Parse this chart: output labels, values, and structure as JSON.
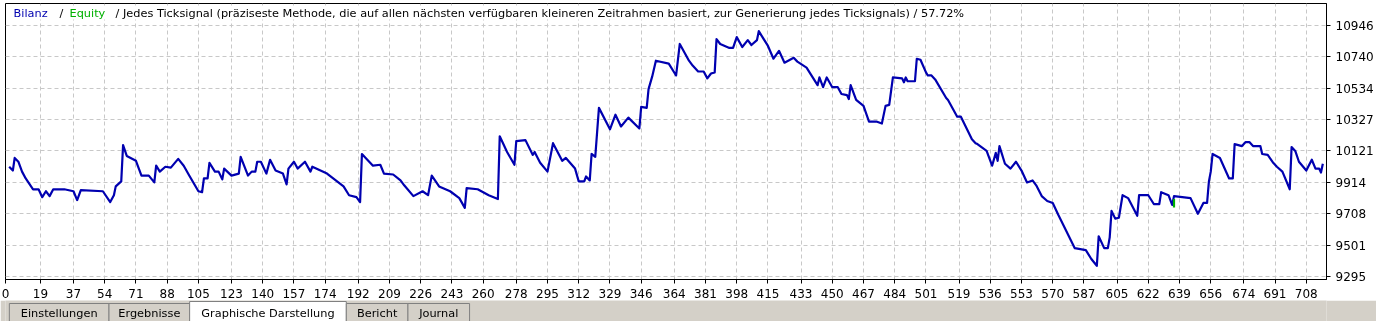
{
  "chart_data": {
    "type": "line",
    "title": "/ Jedes  Ticksignal (präziseste Methode, die auf allen nächsten verfügbaren kleineren Zeitrahmen basiert, zur Generierung jedes Ticksignals) / 57.72%",
    "xlim": [
      0,
      719
    ],
    "ylim": [
      9276,
      11090
    ],
    "xticks": [
      0,
      19,
      37,
      54,
      71,
      88,
      105,
      123,
      140,
      157,
      174,
      192,
      209,
      226,
      243,
      260,
      278,
      295,
      312,
      329,
      346,
      364,
      381,
      398,
      415,
      433,
      450,
      467,
      484,
      501,
      519,
      536,
      553,
      570,
      587,
      605,
      622,
      639,
      656,
      674,
      691,
      708
    ],
    "yticks": [
      9295,
      9501,
      9708,
      9914,
      10121,
      10327,
      10534,
      10740,
      10946
    ],
    "grid": true,
    "line_style": "solid",
    "series": [
      {
        "name": "Bilanz",
        "color": "#0000b0",
        "x": [
          2,
          4,
          5,
          7,
          9,
          11,
          15,
          18,
          20,
          22,
          24,
          26,
          32,
          37,
          39,
          41,
          53,
          57,
          59,
          60,
          63,
          64,
          66,
          71,
          74,
          78,
          81,
          82,
          84,
          87,
          90,
          94,
          97,
          100,
          105,
          107,
          108,
          110,
          111,
          114,
          116,
          118,
          119,
          123,
          127,
          128,
          132,
          134,
          136,
          137,
          139,
          142,
          144,
          147,
          151,
          153,
          154,
          157,
          159,
          163,
          166,
          167,
          175,
          184,
          187,
          191,
          193,
          194,
          200,
          204,
          206,
          211,
          215,
          217,
          222,
          227,
          230,
          232,
          236,
          242,
          247,
          250,
          251,
          257,
          263,
          268,
          269,
          273,
          277,
          278,
          283,
          287,
          288,
          291,
          295,
          298,
          303,
          305,
          310,
          312,
          315,
          316,
          318,
          319,
          321,
          322,
          323,
          329,
          332,
          335,
          339,
          345,
          346,
          349,
          350,
          352,
          354,
          361,
          365,
          367,
          372,
          374,
          377,
          380,
          382,
          384,
          386,
          387,
          389,
          394,
          396,
          398,
          401,
          404,
          406,
          409,
          410,
          415,
          418,
          421,
          424,
          429,
          431,
          436,
          442,
          443,
          445,
          447,
          450,
          453,
          455,
          458,
          459,
          460,
          463,
          467,
          470,
          474,
          477,
          479,
          481,
          483,
          488,
          489,
          490,
          491,
          495,
          496,
          498,
          501,
          502,
          504,
          506,
          512,
          513,
          518,
          520,
          526,
          528,
          529,
          534,
          537,
          539,
          540,
          541,
          544,
          547,
          550,
          553,
          556,
          559,
          561,
          564,
          567,
          570,
          573,
          582,
          588,
          591,
          594,
          595,
          598,
          600,
          601,
          602,
          604,
          606,
          608,
          611,
          616,
          617,
          622,
          625,
          628,
          629,
          633,
          635,
          636,
          645,
          649,
          652,
          654,
          655,
          656,
          657,
          661,
          666,
          668,
          669,
          673,
          675,
          677,
          679,
          683,
          684,
          687,
          690,
          692,
          695,
          699,
          700,
          702,
          704,
          708,
          711,
          713,
          715,
          716,
          717
        ],
        "values": [
          10017,
          9992,
          10075,
          10050,
          9985,
          9940,
          9869,
          9869,
          9817,
          9856,
          9824,
          9869,
          9869,
          9856,
          9798,
          9863,
          9856,
          9785,
          9830,
          9888,
          9921,
          10159,
          10088,
          10056,
          9959,
          9959,
          9914,
          10024,
          9985,
          10017,
          10011,
          10069,
          10024,
          9959,
          9856,
          9850,
          9940,
          9940,
          10043,
          9985,
          9985,
          9934,
          10005,
          9959,
          9972,
          10082,
          9959,
          9985,
          9985,
          10050,
          10050,
          9972,
          10063,
          9992,
          9972,
          9901,
          10005,
          10050,
          10005,
          10050,
          9985,
          10017,
          9972,
          9888,
          9830,
          9817,
          9785,
          10101,
          10024,
          10030,
          9972,
          9966,
          9927,
          9895,
          9824,
          9856,
          9830,
          9959,
          9888,
          9856,
          9811,
          9747,
          9876,
          9869,
          9830,
          9805,
          10217,
          10114,
          10030,
          10185,
          10192,
          10095,
          10114,
          10043,
          9985,
          10172,
          10056,
          10075,
          10005,
          9921,
          9921,
          9953,
          9927,
          10101,
          10082,
          10243,
          10404,
          10263,
          10359,
          10282,
          10340,
          10269,
          10411,
          10404,
          10527,
          10611,
          10714,
          10695,
          10617,
          10824,
          10714,
          10682,
          10643,
          10643,
          10598,
          10630,
          10637,
          10856,
          10824,
          10798,
          10798,
          10869,
          10804,
          10849,
          10817,
          10849,
          10908,
          10811,
          10727,
          10779,
          10701,
          10733,
          10708,
          10669,
          10553,
          10604,
          10540,
          10604,
          10540,
          10540,
          10495,
          10488,
          10462,
          10553,
          10456,
          10417,
          10314,
          10314,
          10301,
          10417,
          10424,
          10604,
          10598,
          10572,
          10604,
          10579,
          10579,
          10727,
          10720,
          10637,
          10617,
          10617,
          10591,
          10469,
          10456,
          10346,
          10346,
          10198,
          10172,
          10166,
          10121,
          10024,
          10108,
          10056,
          10153,
          10037,
          10005,
          10050,
          9992,
          9914,
          9927,
          9895,
          9824,
          9792,
          9779,
          9701,
          9482,
          9469,
          9411,
          9366,
          9560,
          9482,
          9482,
          9553,
          9727,
          9676,
          9682,
          9830,
          9811,
          9695,
          9830,
          9830,
          9772,
          9772,
          9850,
          9830,
          9766,
          9824,
          9811,
          9708,
          9779,
          9779,
          9921,
          9985,
          10101,
          10075,
          9940,
          9940,
          10166,
          10153,
          10179,
          10179,
          10153,
          10153,
          10101,
          10095,
          10043,
          10017,
          9985,
          9869,
          10146,
          10121,
          10050,
          9992,
          10063,
          10005,
          10005,
          9979,
          10037
        ]
      },
      {
        "name": "Equity",
        "color": "#00b000",
        "x": [
          636,
          636
        ],
        "values": [
          9805,
          9750
        ]
      }
    ],
    "annotations": [
      "/",
      "Einstellungen",
      "Ergebnisse",
      "Graphische Darstellung",
      "Bericht",
      "Journal"
    ]
  }
}
